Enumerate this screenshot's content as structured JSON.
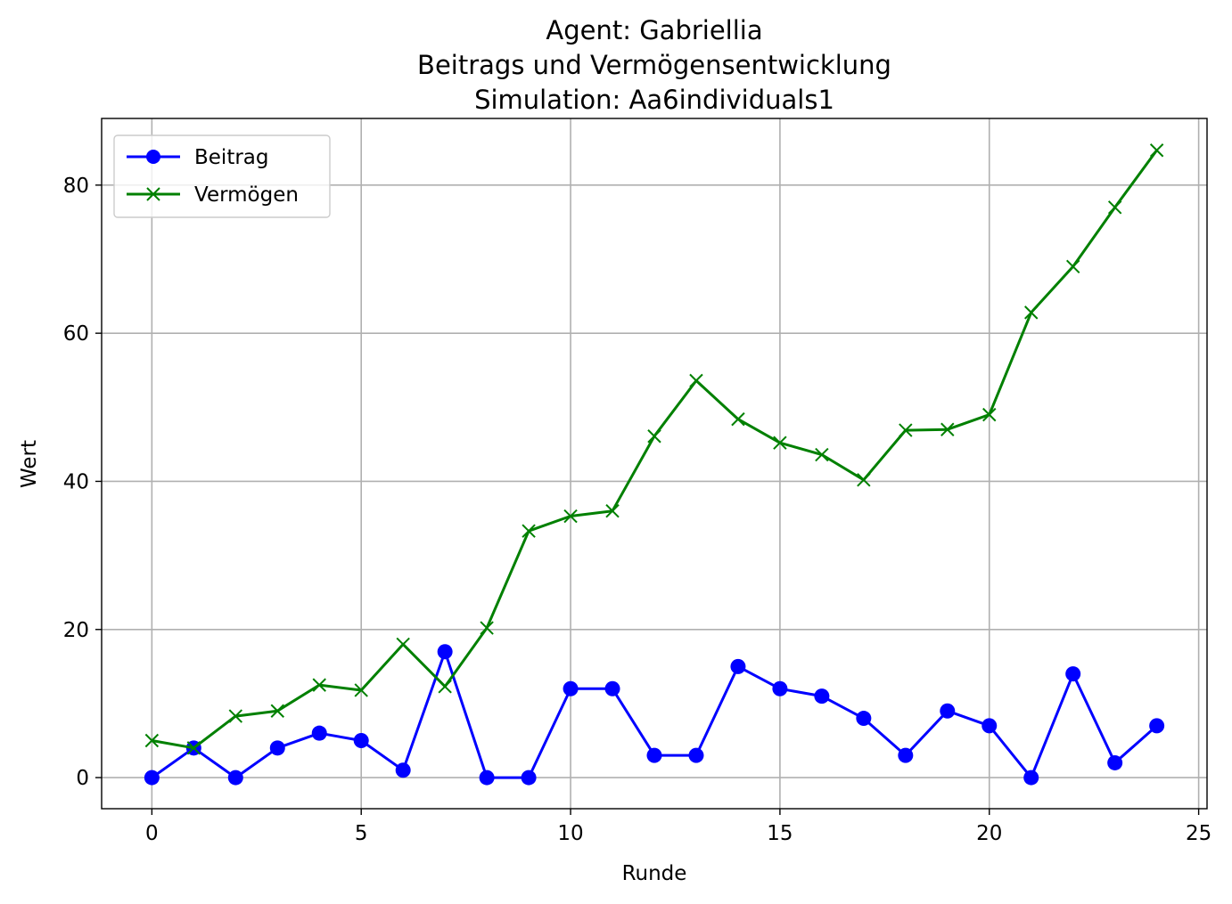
{
  "chart_data": {
    "type": "line",
    "title": [
      "Agent: Gabriellia",
      "Beitrags und Vermögensentwicklung",
      "Simulation: Aa6individuals1"
    ],
    "xlabel": "Runde",
    "ylabel": "Wert",
    "xlim": [
      -1.2,
      25.2
    ],
    "ylim": [
      -4.2,
      89
    ],
    "xticks": [
      0,
      5,
      10,
      15,
      20,
      25
    ],
    "yticks": [
      0,
      20,
      40,
      60,
      80
    ],
    "grid": true,
    "legend_position": "upper-left",
    "x": [
      0,
      1,
      2,
      3,
      4,
      5,
      6,
      7,
      8,
      9,
      10,
      11,
      12,
      13,
      14,
      15,
      16,
      17,
      18,
      19,
      20,
      21,
      22,
      23,
      24
    ],
    "series": [
      {
        "name": "Beitrag",
        "color": "#0000ff",
        "marker": "circle",
        "values": [
          0,
          4,
          0,
          4,
          6,
          5,
          1,
          17,
          0,
          0,
          12,
          12,
          3,
          3,
          15,
          12,
          11,
          8,
          3,
          9,
          7,
          0,
          14,
          2,
          7
        ]
      },
      {
        "name": "Vermögen",
        "color": "#008000",
        "marker": "x",
        "values": [
          5,
          4,
          8.3,
          9,
          12.5,
          11.8,
          18,
          12.3,
          20.2,
          33.3,
          35.3,
          36,
          46.1,
          53.6,
          48.4,
          45.2,
          43.6,
          40.2,
          46.9,
          47,
          49,
          62.8,
          69,
          77,
          84.7
        ]
      }
    ]
  }
}
